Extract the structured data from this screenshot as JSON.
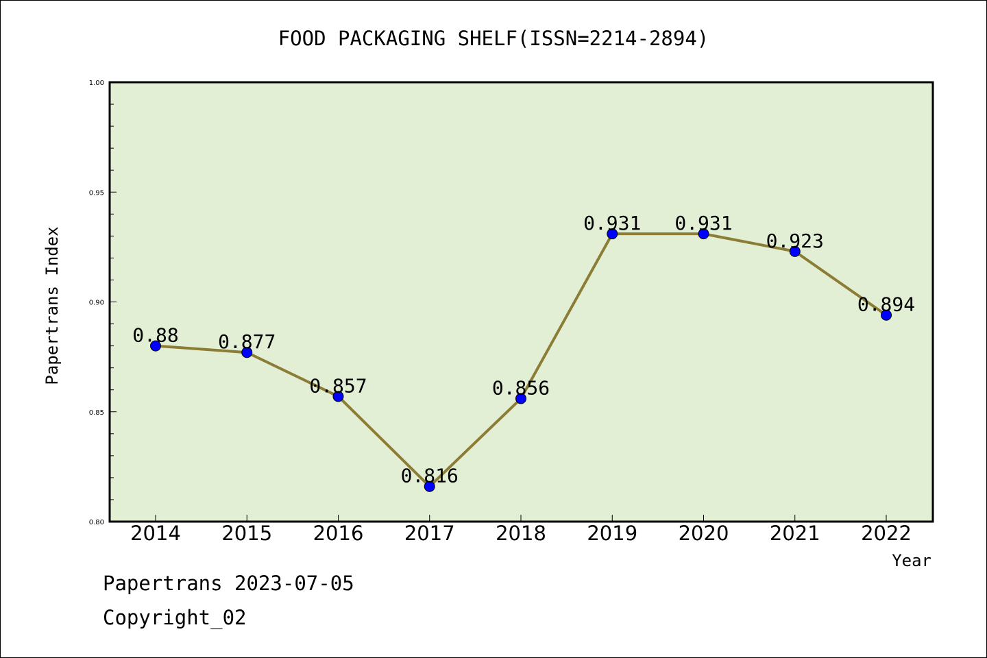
{
  "chart_data": {
    "type": "line",
    "title": "FOOD PACKAGING SHELF(ISSN=2214-2894)",
    "xlabel": "Year",
    "ylabel": "Papertrans Index",
    "categories": [
      "2014",
      "2015",
      "2016",
      "2017",
      "2018",
      "2019",
      "2020",
      "2021",
      "2022"
    ],
    "series": [
      {
        "values": [
          0.88,
          0.877,
          0.857,
          0.816,
          0.856,
          0.931,
          0.931,
          0.923,
          0.894
        ],
        "labels": [
          "0.88",
          "0.877",
          "0.857",
          "0.816",
          "0.856",
          "0.931",
          "0.931",
          "0.923",
          "0.894"
        ]
      }
    ],
    "ylim": [
      0.8,
      1.0
    ],
    "yticks": [
      "0.80",
      "0.85",
      "0.90",
      "0.95",
      "1.00"
    ],
    "grid": false,
    "colors": {
      "plot_background": "#e2efd5",
      "line": "#8b7d35",
      "marker": "#0000ff",
      "axes": "#000000"
    }
  },
  "footer": {
    "line1": "Papertrans 2023-07-05",
    "line2": "Copyright_02"
  }
}
